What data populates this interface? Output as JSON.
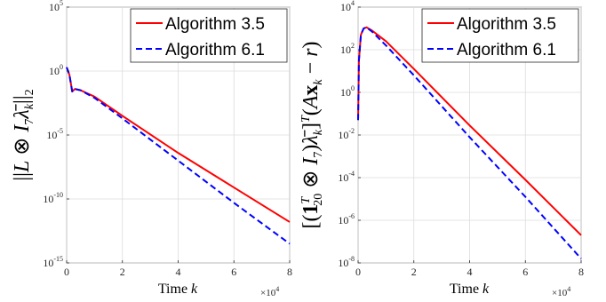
{
  "chart_data": [
    {
      "type": "line",
      "y_scale": "log",
      "xlim": [
        0,
        8
      ],
      "ylim_exp": [
        -15,
        5
      ],
      "x_ticks": [
        "0",
        "2",
        "4",
        "6",
        "8"
      ],
      "y_ticks": [
        {
          "base": "10",
          "exp": "5"
        },
        {
          "base": "10",
          "exp": "0"
        },
        {
          "base": "10",
          "exp": "-5"
        },
        {
          "base": "10",
          "exp": "-10"
        },
        {
          "base": "10",
          "exp": "-15"
        }
      ],
      "xlabel": "Time k",
      "x_multiplier": {
        "base": "×10",
        "exp": "4"
      },
      "ylabel": "||L ⊗ I7 λ̄k||2",
      "legend_position": "top-right",
      "series": [
        {
          "name": "Algorithm 3.5",
          "color": "#ff0000",
          "style": "solid",
          "points_x": [
            0,
            0.1,
            0.2,
            0.3,
            0.5,
            1,
            2,
            4,
            6,
            8
          ],
          "points_log10_y": [
            0.3,
            -0.3,
            -1.6,
            -1.4,
            -1.5,
            -2.0,
            -3.5,
            -6.4,
            -9.1,
            -11.8
          ]
        },
        {
          "name": "Algorithm 6.1",
          "color": "#0000ff",
          "style": "dashed",
          "points_x": [
            0,
            0.1,
            0.2,
            0.3,
            0.5,
            1,
            2,
            4,
            6,
            8
          ],
          "points_log10_y": [
            0.3,
            -0.3,
            -1.6,
            -1.4,
            -1.5,
            -2.1,
            -3.7,
            -7.0,
            -10.3,
            -13.5
          ]
        }
      ]
    },
    {
      "type": "line",
      "y_scale": "log",
      "xlim": [
        0,
        8
      ],
      "ylim_exp": [
        -8,
        4
      ],
      "x_ticks": [
        "0",
        "2",
        "4",
        "6",
        "8"
      ],
      "y_ticks": [
        {
          "base": "10",
          "exp": "4"
        },
        {
          "base": "10",
          "exp": "2"
        },
        {
          "base": "10",
          "exp": "0"
        },
        {
          "base": "10",
          "exp": "-2"
        },
        {
          "base": "10",
          "exp": "-4"
        },
        {
          "base": "10",
          "exp": "-6"
        },
        {
          "base": "10",
          "exp": "-8"
        }
      ],
      "xlabel": "Time k",
      "x_multiplier": {
        "base": "×10",
        "exp": "4"
      },
      "ylabel": "[(1T20 ⊗ I7)λ̄k]T(Axk − r)",
      "legend_position": "top-right",
      "series": [
        {
          "name": "Algorithm 3.5",
          "color": "#ff0000",
          "style": "solid",
          "points_x": [
            0,
            0.03,
            0.1,
            0.2,
            0.3,
            0.5,
            1,
            2,
            4,
            6,
            8
          ],
          "points_log10_y": [
            -1.3,
            1.5,
            2.7,
            3.0,
            3.05,
            2.9,
            2.4,
            1.1,
            -1.55,
            -4.1,
            -6.7
          ]
        },
        {
          "name": "Algorithm 6.1",
          "color": "#0000ff",
          "style": "dashed",
          "points_x": [
            0,
            0.03,
            0.1,
            0.2,
            0.3,
            0.5,
            1,
            2,
            4,
            6,
            8
          ],
          "points_log10_y": [
            -1.3,
            1.5,
            2.7,
            3.0,
            3.05,
            2.85,
            2.2,
            0.8,
            -2.1,
            -4.9,
            -7.8
          ]
        }
      ]
    }
  ]
}
